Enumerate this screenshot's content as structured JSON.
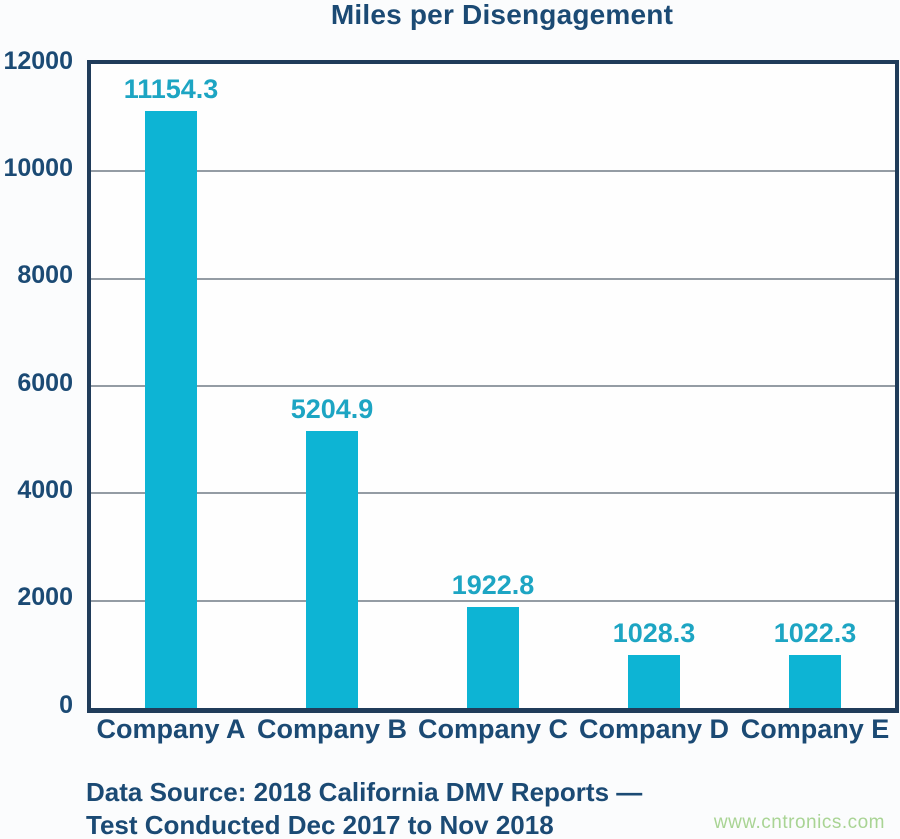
{
  "page": {
    "background": "#fbfcfd"
  },
  "chart_data": {
    "type": "bar",
    "title": "Miles per Disengagement",
    "categories": [
      "Company A",
      "Company B",
      "Company C",
      "Company D",
      "Company E"
    ],
    "values": [
      11154.3,
      5204.9,
      1922.8,
      1028.3,
      1022.3
    ],
    "value_labels": [
      "11154.3",
      "5204.9",
      "1922.8",
      "1028.3",
      "1022.3"
    ],
    "xlabel": "",
    "ylabel": "",
    "ylim": [
      0,
      12000
    ],
    "yticks": [
      0,
      2000,
      4000,
      6000,
      8000,
      10000,
      12000
    ],
    "grid": "horizontal",
    "legend": null,
    "colors": {
      "bar": "#0db4d4",
      "value_label": "#1da5c3",
      "axis_box": "#203c5a",
      "gridline": "#949ca4",
      "text": "#1b4a74"
    }
  },
  "caption": {
    "lines": [
      "Data Source: 2018 California DMV Reports —",
      "Test Conducted Dec 2017 to Nov 2018"
    ]
  },
  "watermark": {
    "text": "www.cntronics.com",
    "color": "#a9d494"
  }
}
